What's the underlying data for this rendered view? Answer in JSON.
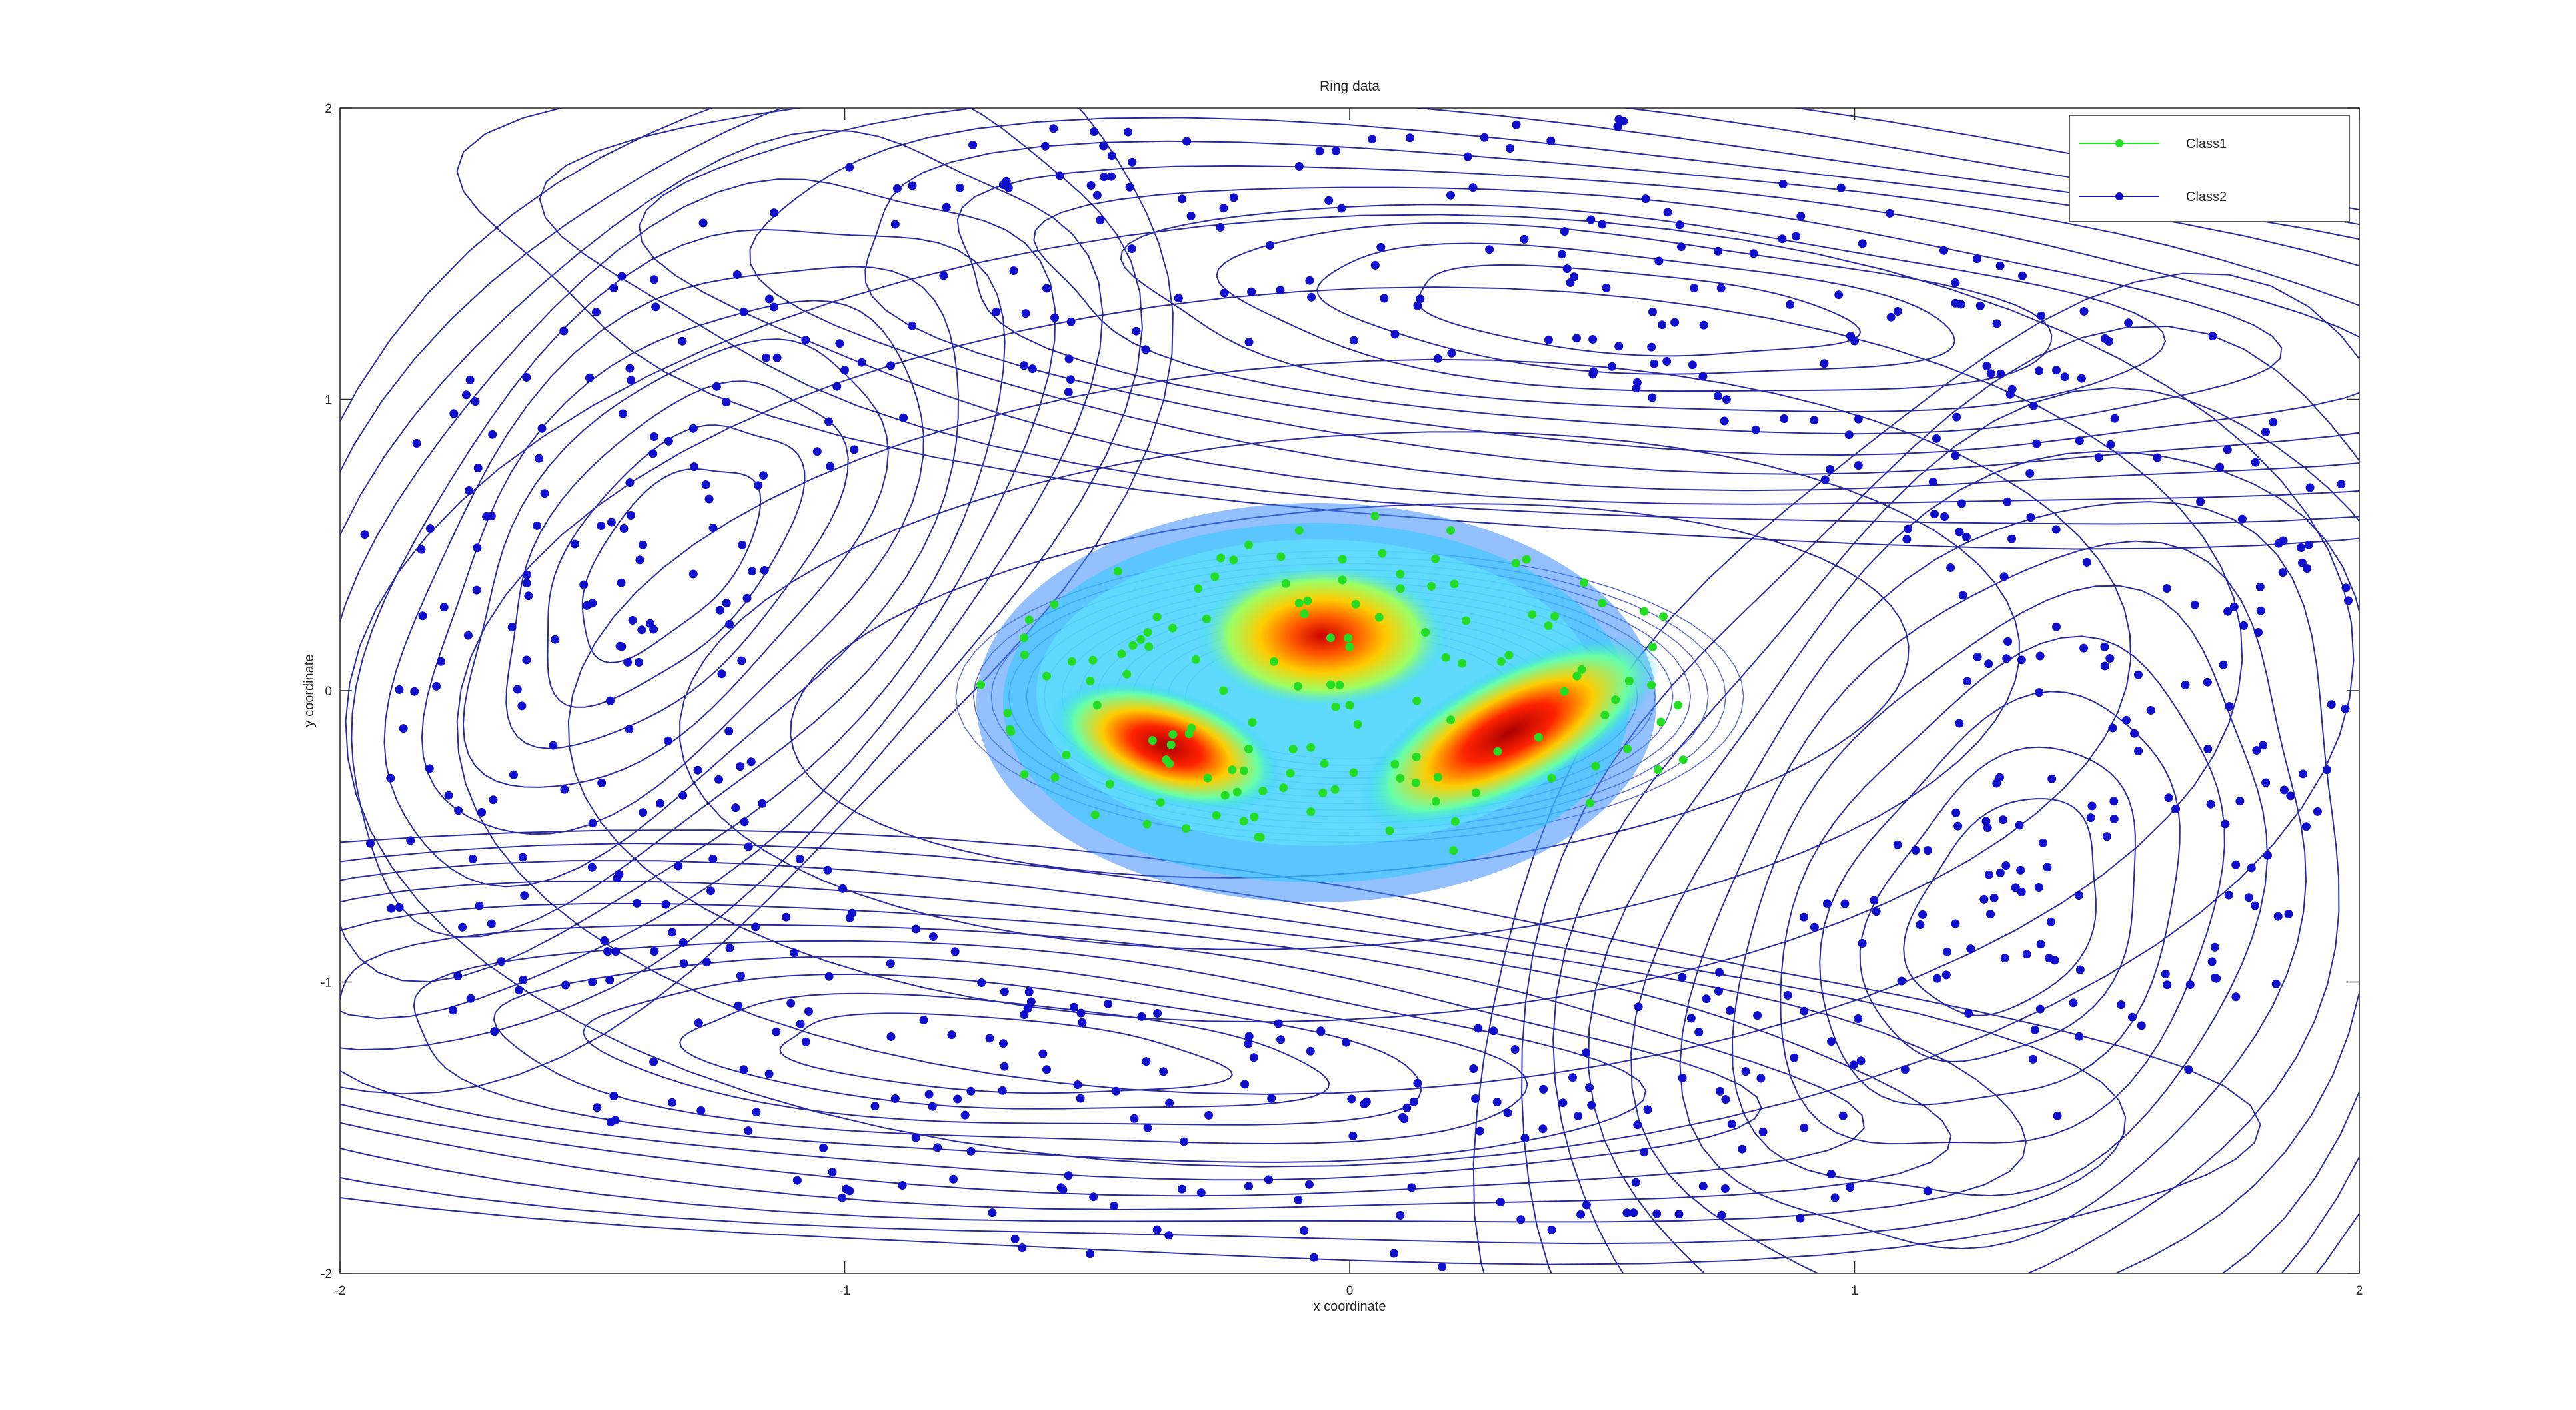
{
  "chart_data": {
    "type": "scatter",
    "title": "Ring data",
    "xlabel": "x coordinate",
    "ylabel": "y coordinate",
    "xlim": [
      -2,
      2
    ],
    "ylim": [
      -2,
      2
    ],
    "xticks": [
      "-2",
      "-1",
      "0",
      "1",
      "2"
    ],
    "yticks": [
      "2",
      "1",
      "0",
      "-1",
      "-2"
    ],
    "grid": false,
    "legend_position": "top-right",
    "overlay": "contour lines: blue outer ring contours with four local maxima, jet-colormap filled contours over the inner cluster",
    "series": [
      {
        "name": "Class1",
        "color": "#22dd22",
        "marker": "filled-circle",
        "distribution": "inner cluster, roughly x in [-0.9, 0.95], y in [-0.6, 0.65]",
        "sample_points": [
          [
            -0.55,
            0.1
          ],
          [
            -0.4,
            0.2
          ],
          [
            -0.3,
            0.35
          ],
          [
            -0.2,
            0.5
          ],
          [
            -0.1,
            0.55
          ],
          [
            0.05,
            0.6
          ],
          [
            0.2,
            0.55
          ],
          [
            0.35,
            0.45
          ],
          [
            0.5,
            0.3
          ],
          [
            0.6,
            0.15
          ],
          [
            0.65,
            -0.05
          ],
          [
            0.55,
            -0.2
          ],
          [
            0.4,
            -0.3
          ],
          [
            0.25,
            -0.35
          ],
          [
            0.1,
            -0.3
          ],
          [
            -0.05,
            -0.25
          ],
          [
            -0.2,
            -0.2
          ],
          [
            -0.35,
            -0.15
          ],
          [
            -0.5,
            -0.05
          ],
          [
            -0.6,
            0.05
          ],
          [
            -0.15,
            0.1
          ],
          [
            0.0,
            0.15
          ],
          [
            0.15,
            0.2
          ],
          [
            0.3,
            0.1
          ],
          [
            0.0,
            -0.05
          ],
          [
            -0.25,
            0.0
          ],
          [
            0.2,
            -0.1
          ],
          [
            -0.1,
            0.3
          ],
          [
            0.1,
            0.4
          ],
          [
            0.45,
            0.05
          ]
        ]
      },
      {
        "name": "Class2",
        "color": "#1010cc",
        "marker": "filled-circle",
        "distribution": "outer ring, radius roughly 1.1 to 2.0 around the origin",
        "sample_points": [
          [
            -1.4,
            0.5
          ],
          [
            -1.3,
            0.4
          ],
          [
            -1.5,
            0.3
          ],
          [
            -1.7,
            0.6
          ],
          [
            -1.6,
            0.9
          ],
          [
            -1.8,
            0.1
          ],
          [
            -1.9,
            -0.3
          ],
          [
            -1.7,
            -0.8
          ],
          [
            -1.5,
            -1.0
          ],
          [
            -1.2,
            -1.3
          ],
          [
            -0.9,
            -1.4
          ],
          [
            -0.6,
            -1.3
          ],
          [
            -0.4,
            -1.5
          ],
          [
            -0.2,
            -1.7
          ],
          [
            0.1,
            -1.8
          ],
          [
            0.4,
            -1.85
          ],
          [
            0.7,
            -1.7
          ],
          [
            0.9,
            -1.5
          ],
          [
            1.1,
            -1.3
          ],
          [
            1.2,
            -0.8
          ],
          [
            1.3,
            -0.6
          ],
          [
            1.5,
            -0.5
          ],
          [
            1.7,
            -0.2
          ],
          [
            1.8,
            0.2
          ],
          [
            1.9,
            0.5
          ],
          [
            1.6,
            0.8
          ],
          [
            1.4,
            1.1
          ],
          [
            1.2,
            1.4
          ],
          [
            0.8,
            1.5
          ],
          [
            0.5,
            1.6
          ],
          [
            0.2,
            1.7
          ],
          [
            -0.1,
            1.8
          ],
          [
            -0.5,
            1.7
          ],
          [
            -0.9,
            1.6
          ],
          [
            -1.2,
            1.3
          ],
          [
            -1.0,
            1.1
          ],
          [
            -0.7,
            1.3
          ],
          [
            0.6,
            1.3
          ],
          [
            1.0,
            1.2
          ],
          [
            0.9,
            -1.1
          ],
          [
            -1.1,
            -0.9
          ],
          [
            -1.3,
            0.9
          ]
        ]
      }
    ]
  }
}
